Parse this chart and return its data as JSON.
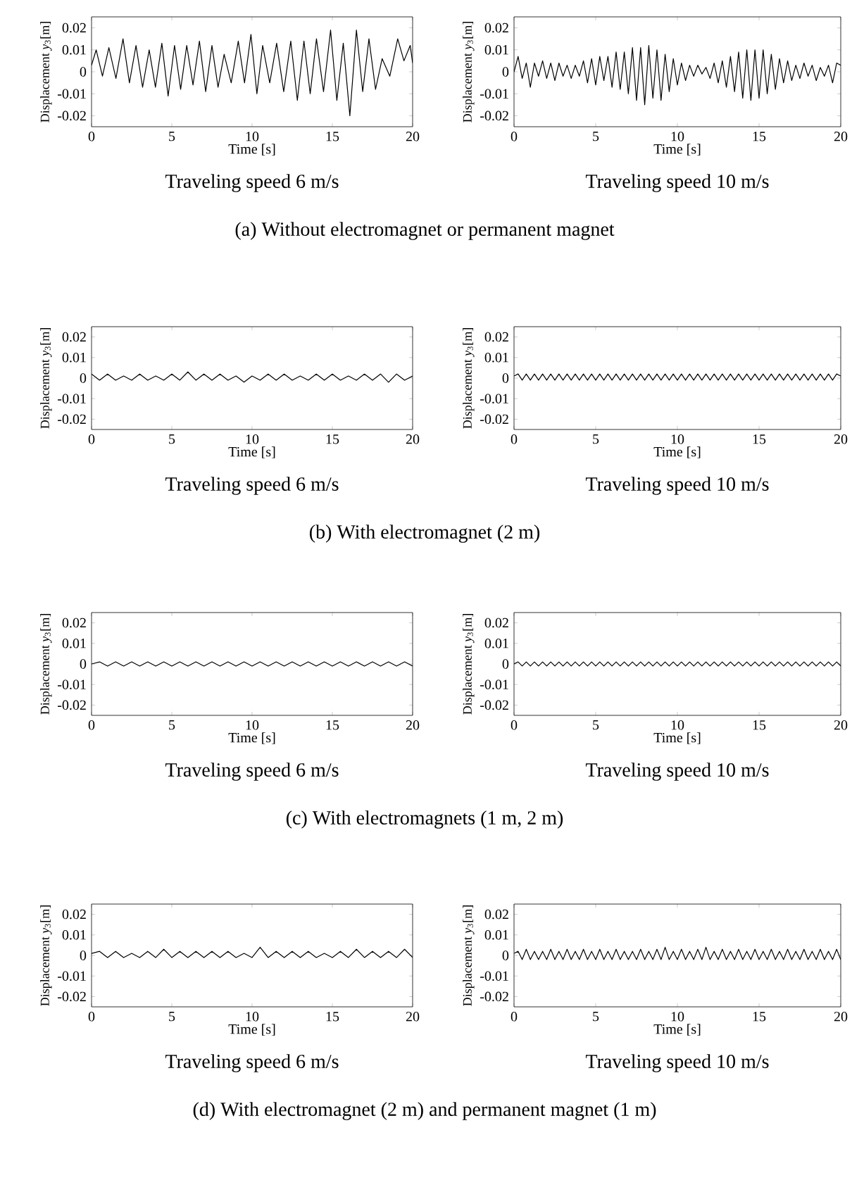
{
  "chart_data": [
    {
      "type": "line",
      "title": "Traveling speed 6 m/s",
      "xlabel": "Time [s]",
      "ylabel": "Displacement *y*$_{3}$[m]",
      "annotations": [
        "(a) Without electromagnet or permanent magnet"
      ],
      "color": "#000000",
      "xlim": [
        0,
        20
      ],
      "ylim": [
        -0.025,
        0.025
      ],
      "xticks": [
        0,
        5,
        10,
        15,
        20
      ],
      "yticks": [
        -0.02,
        -0.01,
        0,
        0.01,
        0.02
      ],
      "x": [
        0,
        0.29,
        0.68,
        1.08,
        1.52,
        1.96,
        2.36,
        2.77,
        3.18,
        3.59,
        3.98,
        4.38,
        4.77,
        5.17,
        5.55,
        5.93,
        6.32,
        6.72,
        7.11,
        7.5,
        7.88,
        8.26,
        8.7,
        9.14,
        9.53,
        9.93,
        10.3,
        10.66,
        11.1,
        11.53,
        11.97,
        12.41,
        12.82,
        13.23,
        13.62,
        14.01,
        14.45,
        14.89,
        15.28,
        15.68,
        16.09,
        16.5,
        16.89,
        17.28,
        17.69,
        18.1,
        18.58,
        19.07,
        19.46,
        19.85,
        20
      ],
      "values": [
        0.003,
        0.01,
        -0.002,
        0.011,
        -0.003,
        0.015,
        -0.005,
        0.012,
        -0.007,
        0.01,
        -0.007,
        0.013,
        -0.011,
        0.012,
        -0.008,
        0.012,
        -0.006,
        0.014,
        -0.009,
        0.012,
        -0.007,
        0.008,
        -0.005,
        0.014,
        -0.005,
        0.017,
        -0.01,
        0.012,
        -0.005,
        0.013,
        -0.009,
        0.014,
        -0.013,
        0.014,
        -0.01,
        0.015,
        -0.009,
        0.019,
        -0.013,
        0.013,
        -0.02,
        0.019,
        -0.009,
        0.015,
        -0.008,
        0.006,
        -0.002,
        0.015,
        0.005,
        0.012,
        0.004
      ]
    },
    {
      "type": "line",
      "title": "Traveling speed 10 m/s",
      "xlabel": "Time [s]",
      "ylabel": "Displacement *y*$_{3}$[m]",
      "color": "#000000",
      "xlim": [
        0,
        20
      ],
      "ylim": [
        -0.025,
        0.025
      ],
      "xticks": [
        0,
        5,
        10,
        15,
        20
      ],
      "yticks": [
        -0.02,
        -0.01,
        0,
        0.01,
        0.02
      ],
      "x": [
        0,
        0.25,
        0.5,
        0.75,
        1,
        1.25,
        1.5,
        1.75,
        2,
        2.25,
        2.5,
        2.75,
        3,
        3.25,
        3.5,
        3.75,
        4,
        4.25,
        4.5,
        4.75,
        5,
        5.25,
        5.5,
        5.75,
        6,
        6.25,
        6.5,
        6.75,
        7,
        7.25,
        7.5,
        7.75,
        8,
        8.25,
        8.5,
        8.75,
        9,
        9.25,
        9.5,
        9.75,
        10,
        10.25,
        10.5,
        10.75,
        11,
        11.25,
        11.5,
        11.75,
        12,
        12.25,
        12.5,
        12.75,
        13,
        13.25,
        13.5,
        13.75,
        14,
        14.25,
        14.5,
        14.75,
        15,
        15.25,
        15.5,
        15.75,
        16,
        16.25,
        16.5,
        16.75,
        17,
        17.25,
        17.5,
        17.75,
        18,
        18.25,
        18.5,
        18.75,
        19,
        19.25,
        19.5,
        19.75,
        20
      ],
      "values": [
        0.0,
        0.007,
        -0.003,
        0.004,
        -0.007,
        0.004,
        -0.002,
        0.005,
        -0.003,
        0.004,
        -0.004,
        0.004,
        -0.002,
        0.003,
        -0.003,
        0.003,
        -0.002,
        0.005,
        -0.005,
        0.006,
        -0.006,
        0.007,
        -0.004,
        0.007,
        -0.007,
        0.009,
        -0.008,
        0.009,
        -0.01,
        0.011,
        -0.013,
        0.011,
        -0.015,
        0.012,
        -0.012,
        0.01,
        -0.013,
        0.008,
        -0.009,
        0.006,
        -0.006,
        0.004,
        -0.004,
        0.003,
        -0.002,
        0.003,
        -0.001,
        0.002,
        -0.003,
        0.004,
        -0.005,
        0.005,
        -0.007,
        0.007,
        -0.009,
        0.009,
        -0.012,
        0.01,
        -0.013,
        0.01,
        -0.012,
        0.01,
        -0.01,
        0.008,
        -0.008,
        0.006,
        -0.005,
        0.005,
        -0.004,
        0.003,
        -0.003,
        0.004,
        -0.002,
        0.003,
        -0.004,
        0.002,
        -0.002,
        0.003,
        -0.005,
        0.004,
        0.003
      ]
    },
    {
      "type": "line",
      "title": "Traveling speed 6 m/s",
      "xlabel": "Time [s]",
      "ylabel": "Displacement *y*$_{3}$[m]",
      "annotations": [
        "(b) With electromagnet (2 m)"
      ],
      "color": "#000000",
      "xlim": [
        0,
        20
      ],
      "ylim": [
        -0.025,
        0.025
      ],
      "xticks": [
        0,
        5,
        10,
        15,
        20
      ],
      "yticks": [
        -0.02,
        -0.01,
        0,
        0.01,
        0.02
      ],
      "x": [
        0,
        0.5,
        1,
        1.5,
        2,
        2.5,
        3,
        3.5,
        4,
        4.5,
        5,
        5.5,
        6,
        6.5,
        7,
        7.5,
        8,
        8.5,
        9,
        9.5,
        10,
        10.5,
        11,
        11.5,
        12,
        12.5,
        13,
        13.5,
        14,
        14.5,
        15,
        15.5,
        16,
        16.5,
        17,
        17.5,
        18,
        18.5,
        19,
        19.5,
        20
      ],
      "values": [
        0.002,
        -0.001,
        0.002,
        -0.001,
        0.001,
        -0.001,
        0.002,
        -0.001,
        0.001,
        -0.001,
        0.002,
        -0.001,
        0.003,
        -0.001,
        0.002,
        -0.001,
        0.002,
        -0.001,
        0.001,
        -0.002,
        0.001,
        -0.001,
        0.002,
        -0.001,
        0.002,
        -0.001,
        0.001,
        -0.001,
        0.002,
        -0.001,
        0.002,
        -0.001,
        0.001,
        -0.001,
        0.002,
        -0.001,
        0.002,
        -0.002,
        0.002,
        -0.001,
        0.001
      ]
    },
    {
      "type": "line",
      "title": "Traveling speed 10 m/s",
      "xlabel": "Time [s]",
      "ylabel": "Displacement *y*$_{3}$[m]",
      "color": "#000000",
      "xlim": [
        0,
        20
      ],
      "ylim": [
        -0.025,
        0.025
      ],
      "xticks": [
        0,
        5,
        10,
        15,
        20
      ],
      "yticks": [
        -0.02,
        -0.01,
        0,
        0.01,
        0.02
      ],
      "x": [
        0,
        0.25,
        0.5,
        0.75,
        1,
        1.25,
        1.5,
        1.75,
        2,
        2.25,
        2.5,
        2.75,
        3,
        3.25,
        3.5,
        3.75,
        4,
        4.25,
        4.5,
        4.75,
        5,
        5.25,
        5.5,
        5.75,
        6,
        6.25,
        6.5,
        6.75,
        7,
        7.25,
        7.5,
        7.75,
        8,
        8.25,
        8.5,
        8.75,
        9,
        9.25,
        9.5,
        9.75,
        10,
        10.25,
        10.5,
        10.75,
        11,
        11.25,
        11.5,
        11.75,
        12,
        12.25,
        12.5,
        12.75,
        13,
        13.25,
        13.5,
        13.75,
        14,
        14.25,
        14.5,
        14.75,
        15,
        15.25,
        15.5,
        15.75,
        16,
        16.25,
        16.5,
        16.75,
        17,
        17.25,
        17.5,
        17.75,
        18,
        18.25,
        18.5,
        18.75,
        19,
        19.25,
        19.5,
        19.75,
        20
      ],
      "values": [
        0.001,
        0.002,
        -0.001,
        0.002,
        -0.001,
        0.002,
        -0.001,
        0.002,
        -0.001,
        0.002,
        -0.001,
        0.002,
        -0.001,
        0.002,
        -0.001,
        0.002,
        -0.001,
        0.002,
        -0.001,
        0.002,
        -0.001,
        0.002,
        -0.001,
        0.002,
        -0.001,
        0.002,
        -0.001,
        0.002,
        -0.001,
        0.002,
        -0.001,
        0.002,
        -0.001,
        0.002,
        -0.001,
        0.002,
        -0.001,
        0.002,
        -0.001,
        0.002,
        -0.001,
        0.002,
        -0.001,
        0.002,
        -0.001,
        0.002,
        -0.001,
        0.002,
        -0.001,
        0.002,
        -0.001,
        0.002,
        -0.001,
        0.002,
        -0.001,
        0.002,
        -0.001,
        0.002,
        -0.001,
        0.002,
        -0.001,
        0.002,
        -0.001,
        0.002,
        -0.001,
        0.002,
        -0.001,
        0.002,
        -0.001,
        0.002,
        -0.001,
        0.002,
        -0.001,
        0.002,
        -0.001,
        0.002,
        -0.001,
        0.002,
        -0.001,
        0.002,
        0.001
      ]
    },
    {
      "type": "line",
      "title": "Traveling speed 6 m/s",
      "xlabel": "Time [s]",
      "ylabel": "Displacement *y*$_{3}$[m]",
      "annotations": [
        "(c) With electromagnets (1 m, 2 m)"
      ],
      "color": "#000000",
      "xlim": [
        0,
        20
      ],
      "ylim": [
        -0.025,
        0.025
      ],
      "xticks": [
        0,
        5,
        10,
        15,
        20
      ],
      "yticks": [
        -0.02,
        -0.01,
        0,
        0.01,
        0.02
      ],
      "x": [
        0,
        0.5,
        1,
        1.5,
        2,
        2.5,
        3,
        3.5,
        4,
        4.5,
        5,
        5.5,
        6,
        6.5,
        7,
        7.5,
        8,
        8.5,
        9,
        9.5,
        10,
        10.5,
        11,
        11.5,
        12,
        12.5,
        13,
        13.5,
        14,
        14.5,
        15,
        15.5,
        16,
        16.5,
        17,
        17.5,
        18,
        18.5,
        19,
        19.5,
        20
      ],
      "values": [
        0,
        0.001,
        -0.001,
        0.001,
        -0.001,
        0.001,
        -0.001,
        0.001,
        -0.001,
        0.001,
        -0.001,
        0.001,
        -0.001,
        0.001,
        -0.001,
        0.001,
        -0.001,
        0.001,
        -0.001,
        0.001,
        -0.001,
        0.001,
        -0.001,
        0.001,
        -0.001,
        0.001,
        -0.001,
        0.001,
        -0.001,
        0.001,
        -0.001,
        0.001,
        -0.001,
        0.001,
        -0.001,
        0.001,
        -0.001,
        0.001,
        -0.001,
        0.001,
        -0.001
      ]
    },
    {
      "type": "line",
      "title": "Traveling speed 10 m/s",
      "xlabel": "Time [s]",
      "ylabel": "Displacement *y*$_{3}$[m]",
      "color": "#000000",
      "xlim": [
        0,
        20
      ],
      "ylim": [
        -0.025,
        0.025
      ],
      "xticks": [
        0,
        5,
        10,
        15,
        20
      ],
      "yticks": [
        -0.02,
        -0.01,
        0,
        0.01,
        0.02
      ],
      "x": [
        0,
        0.25,
        0.5,
        0.75,
        1,
        1.25,
        1.5,
        1.75,
        2,
        2.25,
        2.5,
        2.75,
        3,
        3.25,
        3.5,
        3.75,
        4,
        4.25,
        4.5,
        4.75,
        5,
        5.25,
        5.5,
        5.75,
        6,
        6.25,
        6.5,
        6.75,
        7,
        7.25,
        7.5,
        7.75,
        8,
        8.25,
        8.5,
        8.75,
        9,
        9.25,
        9.5,
        9.75,
        10,
        10.25,
        10.5,
        10.75,
        11,
        11.25,
        11.5,
        11.75,
        12,
        12.25,
        12.5,
        12.75,
        13,
        13.25,
        13.5,
        13.75,
        14,
        14.25,
        14.5,
        14.75,
        15,
        15.25,
        15.5,
        15.75,
        16,
        16.25,
        16.5,
        16.75,
        17,
        17.25,
        17.5,
        17.75,
        18,
        18.25,
        18.5,
        18.75,
        19,
        19.25,
        19.5,
        19.75,
        20
      ],
      "values": [
        0,
        0.001,
        -0.001,
        0.001,
        -0.001,
        0.001,
        -0.001,
        0.001,
        -0.001,
        0.001,
        -0.001,
        0.001,
        -0.001,
        0.001,
        -0.001,
        0.001,
        -0.001,
        0.001,
        -0.001,
        0.001,
        -0.001,
        0.001,
        -0.001,
        0.001,
        -0.001,
        0.001,
        -0.001,
        0.001,
        -0.001,
        0.001,
        -0.001,
        0.001,
        -0.001,
        0.001,
        -0.001,
        0.001,
        -0.001,
        0.001,
        -0.001,
        0.001,
        -0.001,
        0.001,
        -0.001,
        0.001,
        -0.001,
        0.001,
        -0.001,
        0.001,
        -0.001,
        0.001,
        -0.001,
        0.001,
        -0.001,
        0.001,
        -0.001,
        0.001,
        -0.001,
        0.001,
        -0.001,
        0.001,
        -0.001,
        0.001,
        -0.001,
        0.001,
        -0.001,
        0.001,
        -0.001,
        0.001,
        -0.001,
        0.001,
        -0.001,
        0.001,
        -0.001,
        0.001,
        -0.001,
        0.001,
        -0.001,
        0.001,
        -0.001,
        0.001,
        -0.001
      ]
    },
    {
      "type": "line",
      "title": "Traveling speed 6 m/s",
      "xlabel": "Time [s]",
      "ylabel": "Displacement *y*$_{3}$[m]",
      "annotations": [
        "(d) With electromagnet (2 m) and permanent magnet (1 m)"
      ],
      "color": "#000000",
      "xlim": [
        0,
        20
      ],
      "ylim": [
        -0.025,
        0.025
      ],
      "xticks": [
        0,
        5,
        10,
        15,
        20
      ],
      "yticks": [
        -0.02,
        -0.01,
        0,
        0.01,
        0.02
      ],
      "x": [
        0,
        0.5,
        1,
        1.5,
        2,
        2.5,
        3,
        3.5,
        4,
        4.5,
        5,
        5.5,
        6,
        6.5,
        7,
        7.5,
        8,
        8.5,
        9,
        9.5,
        10,
        10.5,
        11,
        11.5,
        12,
        12.5,
        13,
        13.5,
        14,
        14.5,
        15,
        15.5,
        16,
        16.5,
        17,
        17.5,
        18,
        18.5,
        19,
        19.5,
        20
      ],
      "values": [
        0.001,
        0.002,
        -0.001,
        0.002,
        -0.001,
        0.001,
        -0.001,
        0.002,
        -0.001,
        0.003,
        -0.001,
        0.002,
        -0.001,
        0.002,
        -0.001,
        0.002,
        -0.001,
        0.002,
        -0.001,
        0.001,
        -0.001,
        0.004,
        -0.001,
        0.002,
        -0.001,
        0.002,
        -0.001,
        0.002,
        -0.001,
        0.001,
        -0.001,
        0.002,
        -0.001,
        0.003,
        -0.001,
        0.002,
        -0.001,
        0.002,
        -0.001,
        0.003,
        -0.001
      ]
    },
    {
      "type": "line",
      "title": "Traveling speed 10 m/s",
      "xlabel": "Time [s]",
      "ylabel": "Displacement *y*$_{3}$[m]",
      "color": "#000000",
      "xlim": [
        0,
        20
      ],
      "ylim": [
        -0.025,
        0.025
      ],
      "xticks": [
        0,
        5,
        10,
        15,
        20
      ],
      "yticks": [
        -0.02,
        -0.01,
        0,
        0.01,
        0.02
      ],
      "x": [
        0,
        0.25,
        0.5,
        0.75,
        1,
        1.25,
        1.5,
        1.75,
        2,
        2.25,
        2.5,
        2.75,
        3,
        3.25,
        3.5,
        3.75,
        4,
        4.25,
        4.5,
        4.75,
        5,
        5.25,
        5.5,
        5.75,
        6,
        6.25,
        6.5,
        6.75,
        7,
        7.25,
        7.5,
        7.75,
        8,
        8.25,
        8.5,
        8.75,
        9,
        9.25,
        9.5,
        9.75,
        10,
        10.25,
        10.5,
        10.75,
        11,
        11.25,
        11.5,
        11.75,
        12,
        12.25,
        12.5,
        12.75,
        13,
        13.25,
        13.5,
        13.75,
        14,
        14.25,
        14.5,
        14.75,
        15,
        15.25,
        15.5,
        15.75,
        16,
        16.25,
        16.5,
        16.75,
        17,
        17.25,
        17.5,
        17.75,
        18,
        18.25,
        18.5,
        18.75,
        19,
        19.25,
        19.5,
        19.75,
        20
      ],
      "values": [
        0.001,
        0.002,
        -0.002,
        0.003,
        -0.002,
        0.002,
        -0.002,
        0.002,
        -0.002,
        0.003,
        -0.002,
        0.002,
        -0.002,
        0.003,
        -0.002,
        0.002,
        -0.002,
        0.003,
        -0.002,
        0.002,
        -0.002,
        0.003,
        -0.002,
        0.002,
        -0.002,
        0.003,
        -0.002,
        0.002,
        -0.002,
        0.002,
        -0.002,
        0.003,
        -0.002,
        0.002,
        -0.002,
        0.003,
        -0.002,
        0.004,
        -0.002,
        0.002,
        -0.002,
        0.003,
        -0.002,
        0.002,
        -0.002,
        0.003,
        -0.002,
        0.004,
        -0.002,
        0.002,
        -0.002,
        0.003,
        -0.002,
        0.002,
        -0.002,
        0.003,
        -0.002,
        0.002,
        -0.002,
        0.003,
        -0.002,
        0.002,
        -0.002,
        0.003,
        -0.002,
        0.002,
        -0.002,
        0.003,
        -0.002,
        0.002,
        -0.002,
        0.003,
        -0.002,
        0.002,
        -0.002,
        0.003,
        -0.002,
        0.002,
        -0.002,
        0.003,
        -0.002
      ]
    }
  ]
}
